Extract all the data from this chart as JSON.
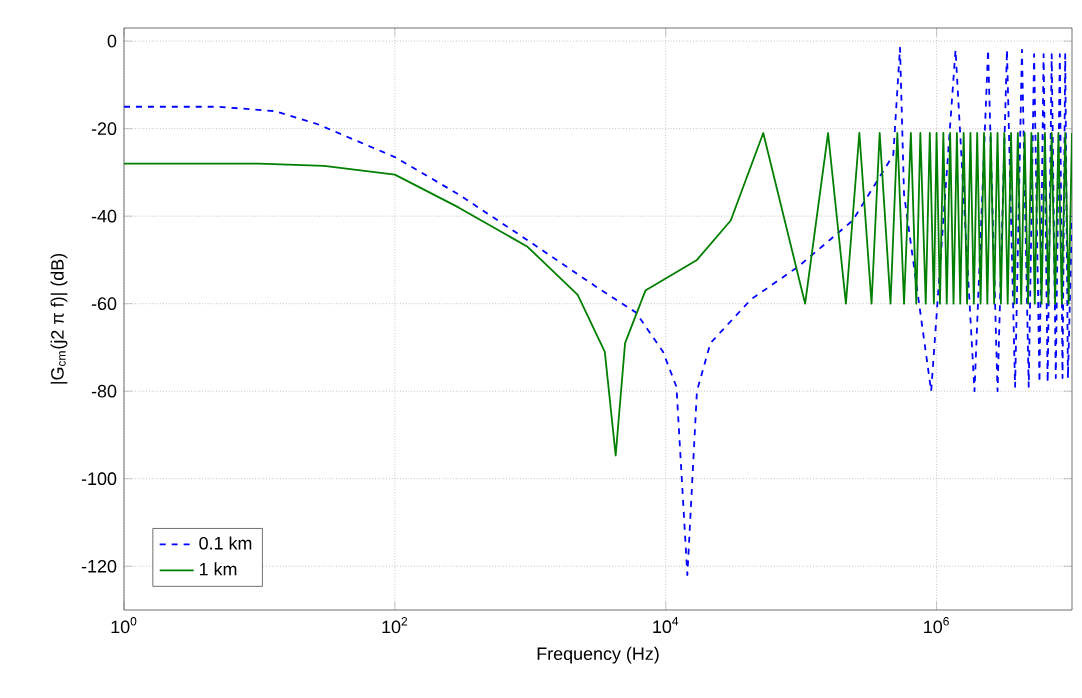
{
  "chart_data": {
    "type": "line",
    "xlabel": "Frequency (Hz)",
    "ylabel": "|G$_{cm}$(j2 π f)| (dB)",
    "log": "x",
    "xlim": [
      1,
      10000000
    ],
    "ylim": [
      -130,
      3
    ],
    "xticks": [
      {
        "value": 1,
        "label": "10$^{0}$"
      },
      {
        "value": 100,
        "label": "10$^{2}$"
      },
      {
        "value": 10000,
        "label": "10$^{4}$"
      },
      {
        "value": 1000000,
        "label": "10$^{6}$"
      }
    ],
    "yticks": [
      -120,
      -100,
      -80,
      -60,
      -40,
      -20,
      0
    ],
    "grid": true,
    "legend": "bottom left",
    "series": [
      {
        "name": "0.1 km",
        "color": "#0000ff",
        "line_style": "dashed",
        "x": [
          1,
          5,
          13,
          27,
          100,
          295,
          955,
          3020,
          6030,
          9550,
          12000,
          14450,
          17000,
          21400,
          42700,
          95500,
          240000,
          479000,
          537000,
          575000,
          912000,
          1380000,
          1905000,
          2400000,
          2820000,
          3310000,
          3800000,
          4270000,
          4790000,
          5250000,
          5750000,
          6170000,
          6610000,
          7080000,
          7590000,
          8130000,
          8510000,
          8910000,
          9330000,
          10000000
        ],
        "values": [
          -15,
          -15,
          -16,
          -19,
          -26.5,
          -35,
          -45.5,
          -56,
          -62,
          -71,
          -79,
          -122,
          -80,
          -69,
          -59,
          -51.5,
          -41,
          -26,
          -1.5,
          -35,
          -80,
          -2,
          -80,
          -2,
          -80,
          -2,
          -79,
          -2,
          -79,
          -3,
          -78,
          -3,
          -78,
          -3,
          -77,
          -3,
          -77,
          -3,
          -77,
          -40
        ]
      },
      {
        "name": "1 km",
        "color": "#007f00",
        "line_style": "solid",
        "x": [
          1,
          10,
          30,
          100,
          295,
          955,
          2240,
          3550,
          4270,
          5010,
          7080,
          17000,
          30200,
          52500,
          107000,
          158000,
          214000,
          269000,
          331000,
          380000,
          457000,
          513000,
          575000,
          646000,
          708000,
          759000,
          832000,
          891000,
          955000,
          1000000,
          1059000,
          1122000,
          1189000,
          1259000,
          1334000,
          1413000,
          1496000,
          1585000,
          1679000,
          1778000,
          1884000,
          1995000,
          2113000,
          2239000,
          2371000,
          2512000,
          2661000,
          2818000,
          2985000,
          3162000,
          3350000,
          3548000,
          3758000,
          3981000,
          4217000,
          4467000,
          4732000,
          5012000,
          5309000,
          5623000,
          5957000,
          6310000,
          6683000,
          7079000,
          7499000,
          7943000,
          8414000,
          8913000,
          9441000,
          10000000
        ],
        "values": [
          -28,
          -28,
          -28.5,
          -30.5,
          -38,
          -47,
          -58,
          -71,
          -94.7,
          -69,
          -57,
          -50,
          -41,
          -21,
          -60,
          -21,
          -60,
          -21,
          -60,
          -21,
          -60,
          -21,
          -60,
          -21,
          -60,
          -21,
          -60,
          -21,
          -60,
          -21,
          -60,
          -21,
          -60,
          -21,
          -60,
          -21,
          -60,
          -21,
          -60,
          -21,
          -60,
          -21,
          -60,
          -21,
          -60,
          -21,
          -60,
          -21,
          -60,
          -21,
          -60,
          -21,
          -60,
          -21,
          -60,
          -21,
          -60,
          -21,
          -60,
          -21,
          -60,
          -21,
          -60,
          -21,
          -60,
          -21,
          -60,
          -21,
          -60,
          -21
        ]
      }
    ]
  }
}
